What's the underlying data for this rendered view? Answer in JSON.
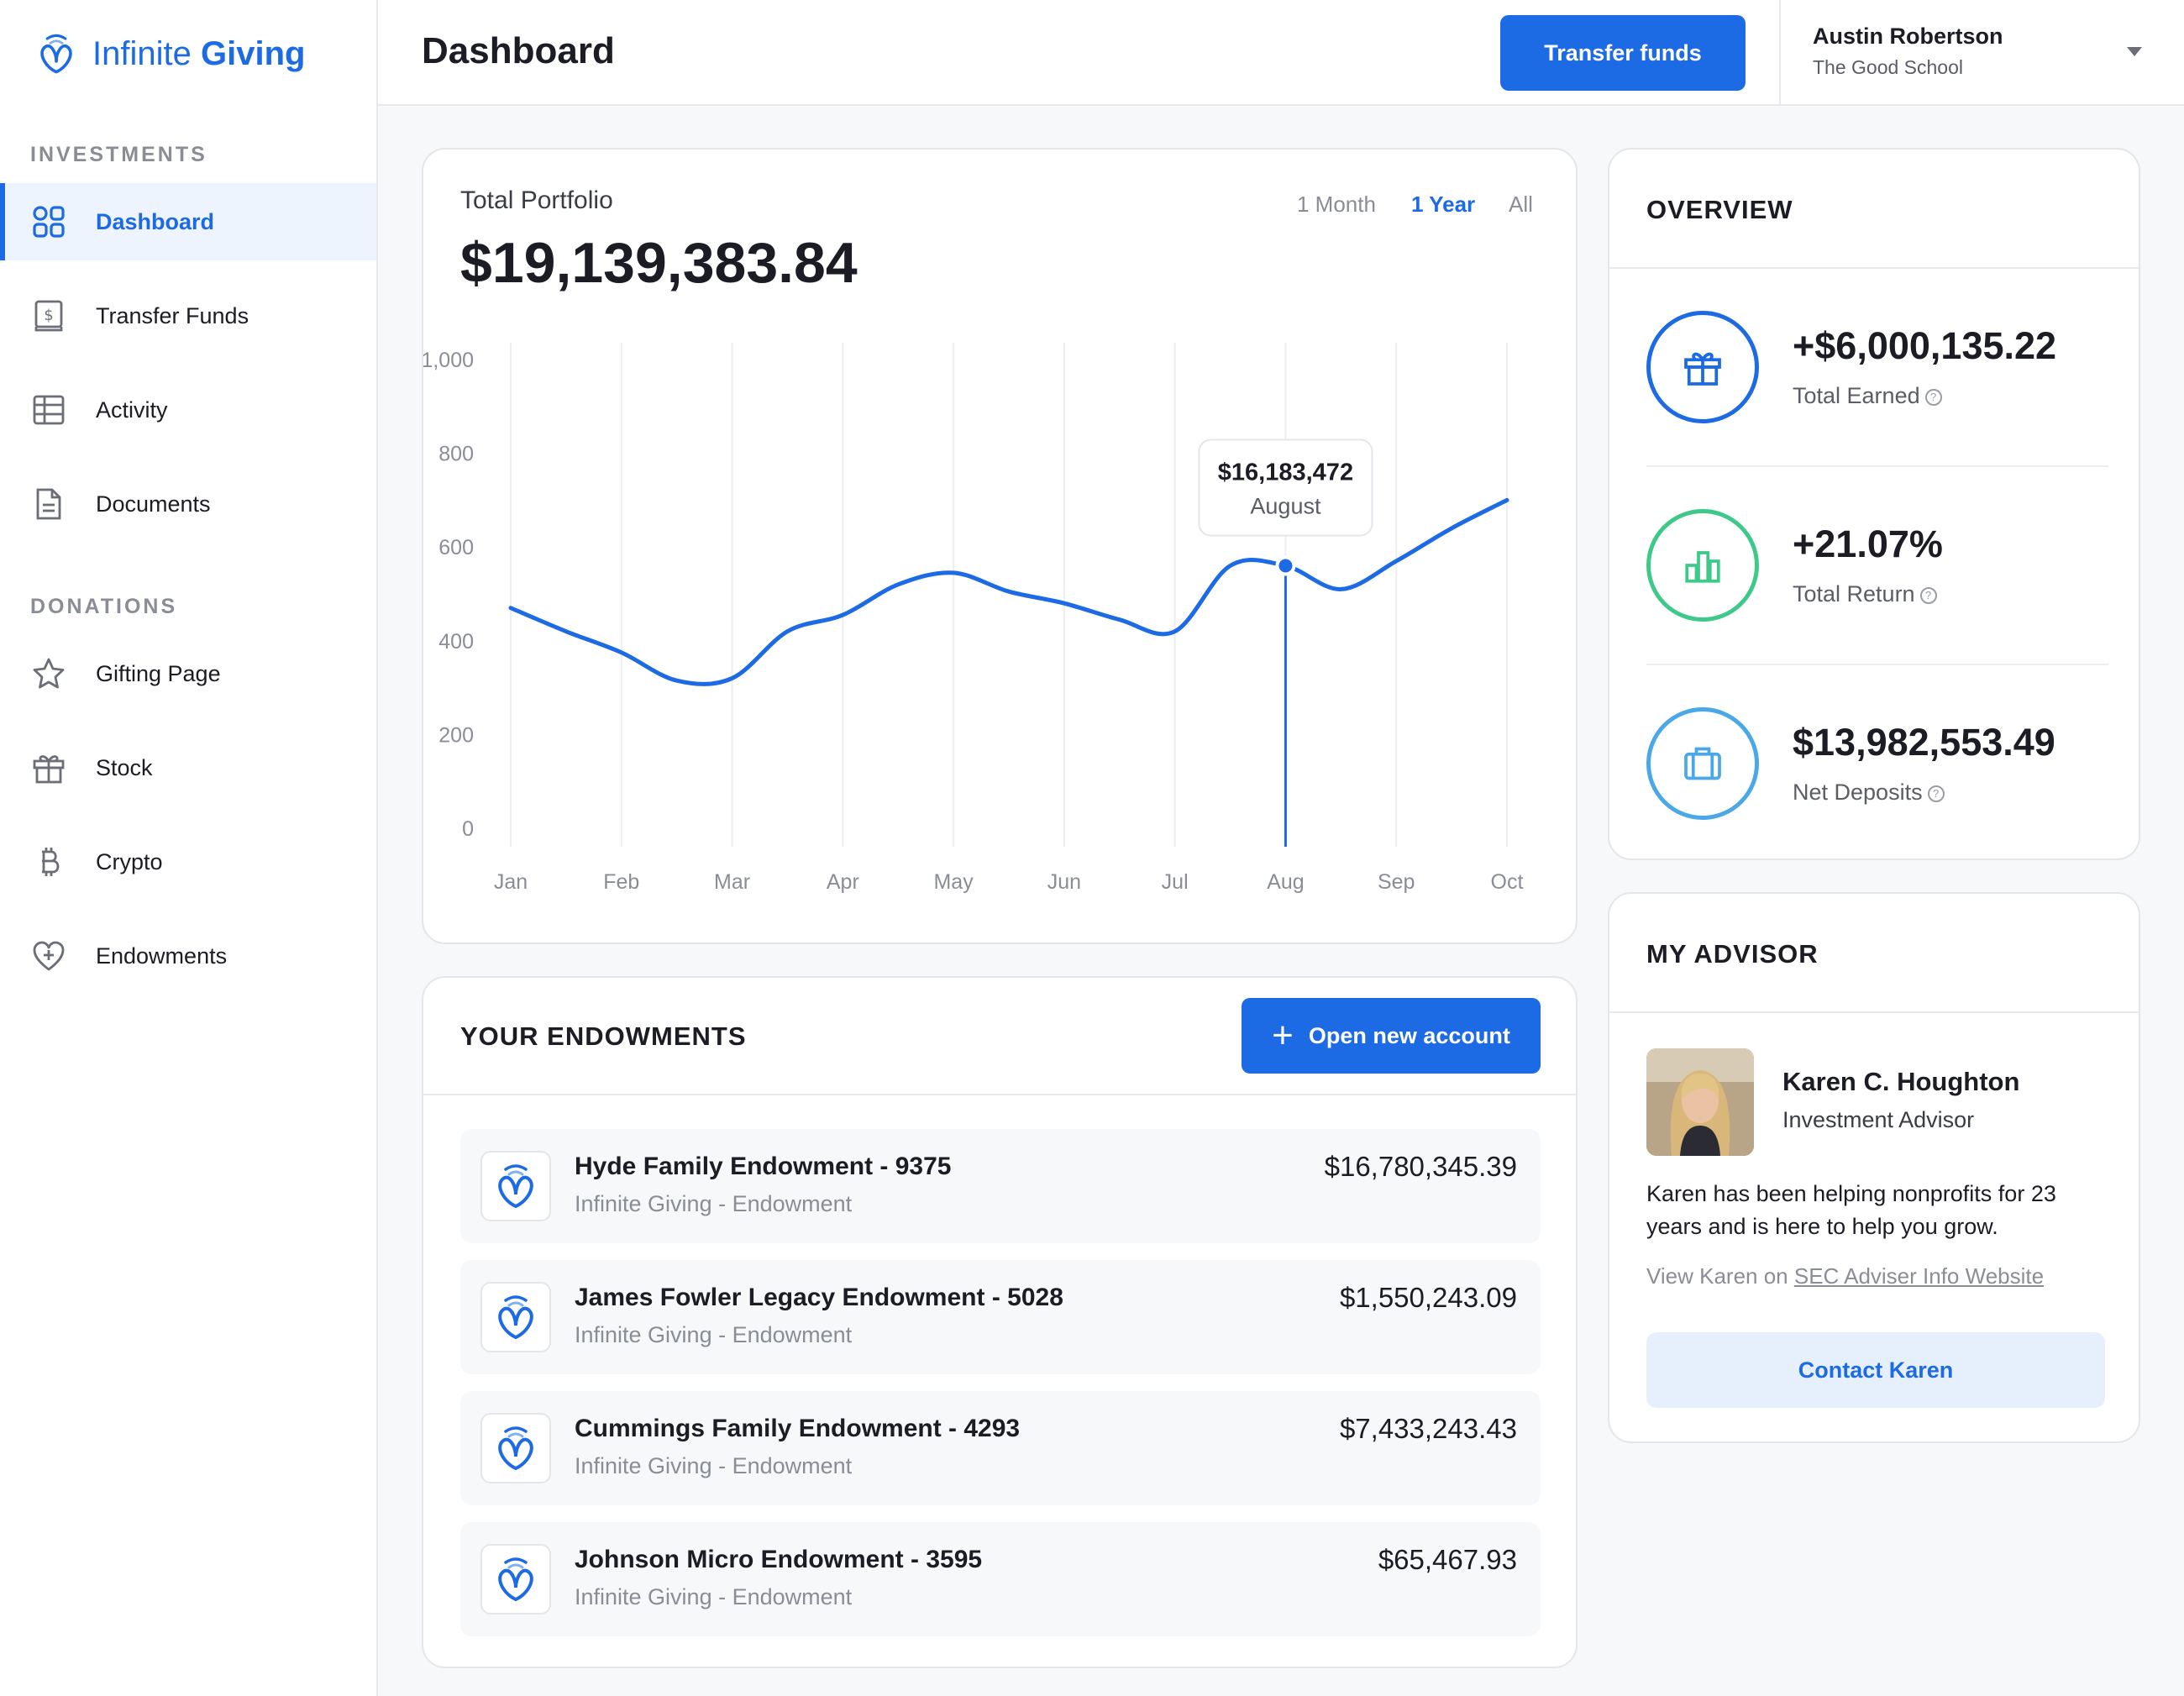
{
  "brand": {
    "name_light": "Infinite",
    "name_bold": "Giving",
    "color": "#1d6ae5"
  },
  "sidebar": {
    "sections": [
      {
        "label": "INVESTMENTS"
      },
      {
        "label": "DONATIONS"
      }
    ],
    "items": [
      {
        "label": "Dashboard",
        "icon": "grid-icon",
        "active": true
      },
      {
        "label": "Transfer Funds",
        "icon": "dollar-doc-icon"
      },
      {
        "label": "Activity",
        "icon": "table-icon"
      },
      {
        "label": "Documents",
        "icon": "document-icon"
      },
      {
        "label": "Gifting Page",
        "icon": "star-icon"
      },
      {
        "label": "Stock",
        "icon": "gift-icon"
      },
      {
        "label": "Crypto",
        "icon": "bitcoin-icon"
      },
      {
        "label": "Endowments",
        "icon": "heart-plus-icon"
      }
    ]
  },
  "header": {
    "title": "Dashboard",
    "transfer_label": "Transfer funds",
    "user_name": "Austin Robertson",
    "user_org": "The Good School"
  },
  "portfolio": {
    "label": "Total Portfolio",
    "value": "$19,139,383.84",
    "ranges": [
      "1 Month",
      "1 Year",
      "All"
    ],
    "active_range": "1 Year",
    "tooltip": {
      "value": "$16,183,472",
      "label": "August"
    }
  },
  "chart_data": {
    "type": "line",
    "categories": [
      "Jan",
      "Feb",
      "Mar",
      "Apr",
      "May",
      "Jun",
      "Jul",
      "Aug",
      "Sep",
      "Oct"
    ],
    "x": [
      1,
      1.5,
      2,
      2.5,
      3,
      3.5,
      4,
      4.5,
      5,
      5.5,
      6,
      6.5,
      7,
      7.5,
      8,
      8.5,
      9,
      9.5,
      10
    ],
    "values": [
      470,
      420,
      375,
      315,
      320,
      420,
      455,
      520,
      545,
      505,
      480,
      445,
      420,
      560,
      560,
      510,
      570,
      640,
      700
    ],
    "yticks": [
      0,
      200,
      400,
      600,
      800,
      1000
    ],
    "ylim": [
      0,
      1000
    ],
    "highlight_x": 8,
    "highlight_y": 560,
    "grid": "vertical",
    "color": "#1d6ae5"
  },
  "endowments": {
    "title": "YOUR ENDOWMENTS",
    "open_label": "Open new account",
    "items": [
      {
        "name": "Hyde Family Endowment - 9375",
        "sub": "Infinite Giving - Endowment",
        "amount": "$16,780,345.39"
      },
      {
        "name": "James Fowler Legacy Endowment - 5028",
        "sub": "Infinite Giving - Endowment",
        "amount": "$1,550,243.09"
      },
      {
        "name": "Cummings Family Endowment - 4293",
        "sub": "Infinite Giving - Endowment",
        "amount": "$7,433,243.43"
      },
      {
        "name": "Johnson Micro Endowment - 3595",
        "sub": "Infinite Giving - Endowment",
        "amount": "$65,467.93"
      }
    ]
  },
  "overview": {
    "title": "OVERVIEW",
    "items": [
      {
        "value": "+$6,000,135.22",
        "label": "Total Earned",
        "icon": "gift-icon",
        "color": "#1d6ae5"
      },
      {
        "value": "+21.07%",
        "label": "Total Return",
        "icon": "bar-chart-icon",
        "color": "#3ec98a"
      },
      {
        "value": "$13,982,553.49",
        "label": "Net Deposits",
        "icon": "briefcase-icon",
        "color": "#4aa8e8"
      }
    ],
    "help_glyph": "?"
  },
  "advisor": {
    "title": "MY ADVISOR",
    "name": "Karen C. Houghton",
    "role": "Investment Advisor",
    "bio": "Karen has been helping nonprofits for 23 years and is here to help you grow.",
    "sec_prefix": "View Karen on ",
    "sec_link": "SEC Adviser Info Website",
    "contact_label": "Contact Karen"
  }
}
